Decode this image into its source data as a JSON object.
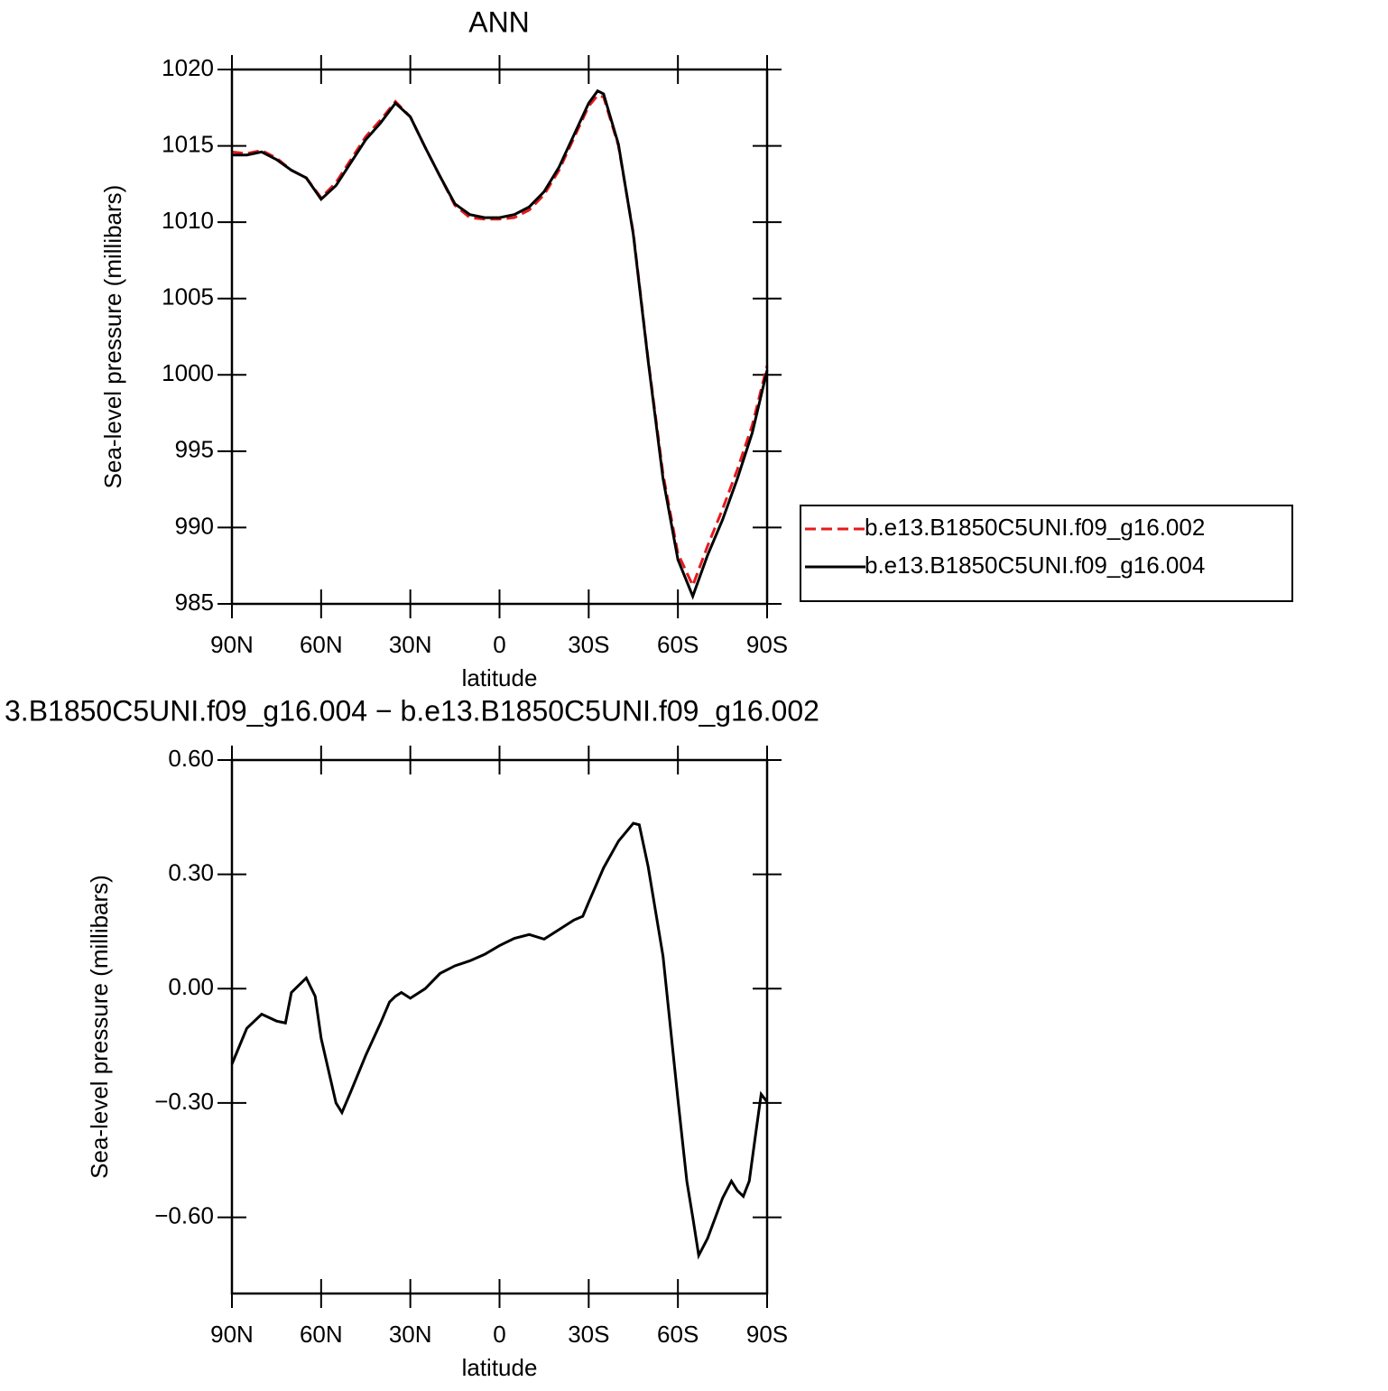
{
  "chart_data": [
    {
      "type": "line",
      "title": "ANN",
      "xlabel": "latitude",
      "ylabel": "Sea-level pressure (millibars)",
      "x": [
        90,
        85,
        80,
        75,
        70,
        65,
        60,
        55,
        50,
        45,
        40,
        35,
        30,
        25,
        20,
        15,
        10,
        5,
        0,
        -5,
        -10,
        -15,
        -20,
        -25,
        -30,
        -33,
        -35,
        -40,
        -45,
        -50,
        -55,
        -60,
        -65,
        -70,
        -75,
        -80,
        -85,
        -90
      ],
      "series": [
        {
          "name": "b.e13.B1850C5UNI.f09_g16.002",
          "color": "#e41a1c",
          "line_style": "dashed",
          "values": [
            1014.6,
            1014.5,
            1014.7,
            1014.2,
            1013.4,
            1012.9,
            1011.6,
            1012.6,
            1014.1,
            1015.6,
            1016.7,
            1017.9,
            1016.9,
            1014.9,
            1013.0,
            1011.1,
            1010.3,
            1010.2,
            1010.2,
            1010.3,
            1010.8,
            1011.8,
            1013.4,
            1015.5,
            1017.6,
            1018.3,
            1018.2,
            1015.0,
            1009.3,
            1001.0,
            993.5,
            988.3,
            986.2,
            988.8,
            991.2,
            993.8,
            996.7,
            1000.6
          ]
        },
        {
          "name": "b.e13.B1850C5UNI.f09_g16.004",
          "color": "#000000",
          "line_style": "solid",
          "values": [
            1014.4,
            1014.4,
            1014.6,
            1014.1,
            1013.4,
            1012.9,
            1011.5,
            1012.4,
            1013.9,
            1015.4,
            1016.5,
            1017.8,
            1016.9,
            1014.9,
            1013.0,
            1011.2,
            1010.5,
            1010.3,
            1010.3,
            1010.5,
            1011.0,
            1012.0,
            1013.6,
            1015.7,
            1017.8,
            1018.6,
            1018.4,
            1015.1,
            1009.2,
            1000.9,
            993.2,
            987.9,
            985.5,
            988.2,
            990.5,
            993.2,
            996.2,
            1000.3
          ]
        }
      ],
      "xlim": [
        90,
        -90
      ],
      "xticks": [
        {
          "value": 90,
          "label": "90N"
        },
        {
          "value": 60,
          "label": "60N"
        },
        {
          "value": 30,
          "label": "30N"
        },
        0,
        {
          "value": -30,
          "label": "30S"
        },
        {
          "value": -60,
          "label": "60S"
        },
        {
          "value": -90,
          "label": "90S"
        }
      ],
      "ylim": [
        985,
        1020
      ],
      "yticks": [
        985,
        990,
        995,
        1000,
        1005,
        1010,
        1015,
        1020
      ],
      "legend": "right"
    },
    {
      "type": "line",
      "title": "3.B1850C5UNI.f09_g16.004 − b.e13.B1850C5UNI.f09_g16.002",
      "xlabel": "latitude",
      "ylabel": "Sea-level pressure (millibars)",
      "x": [
        90,
        85,
        80,
        75,
        72,
        70,
        65,
        62,
        60,
        55,
        53,
        50,
        45,
        40,
        37,
        35,
        33,
        30,
        25,
        20,
        15,
        10,
        5,
        0,
        -5,
        -10,
        -15,
        -20,
        -25,
        -28,
        -30,
        -35,
        -40,
        -45,
        -47,
        -50,
        -55,
        -60,
        -63,
        -65,
        -67,
        -70,
        -75,
        -78,
        -80,
        -82,
        -84,
        -86,
        -88,
        -90
      ],
      "series": [
        {
          "color": "#000000",
          "line_style": "solid",
          "values": [
            -0.198,
            -0.104,
            -0.067,
            -0.085,
            -0.09,
            -0.01,
            0.028,
            -0.02,
            -0.13,
            -0.3,
            -0.325,
            -0.27,
            -0.175,
            -0.09,
            -0.035,
            -0.02,
            -0.01,
            -0.025,
            0.0,
            0.04,
            0.06,
            0.073,
            0.09,
            0.113,
            0.132,
            0.142,
            0.13,
            0.155,
            0.18,
            0.19,
            0.227,
            0.317,
            0.387,
            0.434,
            0.43,
            0.32,
            0.085,
            -0.29,
            -0.505,
            -0.6,
            -0.7,
            -0.655,
            -0.55,
            -0.505,
            -0.53,
            -0.545,
            -0.505,
            -0.39,
            -0.277,
            -0.297
          ]
        }
      ],
      "xlim": [
        90,
        -90
      ],
      "xticks": [
        {
          "value": 90,
          "label": "90N"
        },
        {
          "value": 60,
          "label": "60N"
        },
        {
          "value": 30,
          "label": "30N"
        },
        0,
        {
          "value": -30,
          "label": "30S"
        },
        {
          "value": -60,
          "label": "60S"
        },
        {
          "value": -90,
          "label": "90S"
        }
      ],
      "ylim": [
        -0.8,
        0.6
      ],
      "yticks": [
        {
          "value": -0.6,
          "label": "−0.60"
        },
        {
          "value": -0.3,
          "label": "−0.30"
        },
        {
          "value": 0,
          "label": "0.00"
        },
        {
          "value": 0.3,
          "label": "0.30"
        },
        {
          "value": 0.6,
          "label": "0.60"
        }
      ]
    }
  ]
}
